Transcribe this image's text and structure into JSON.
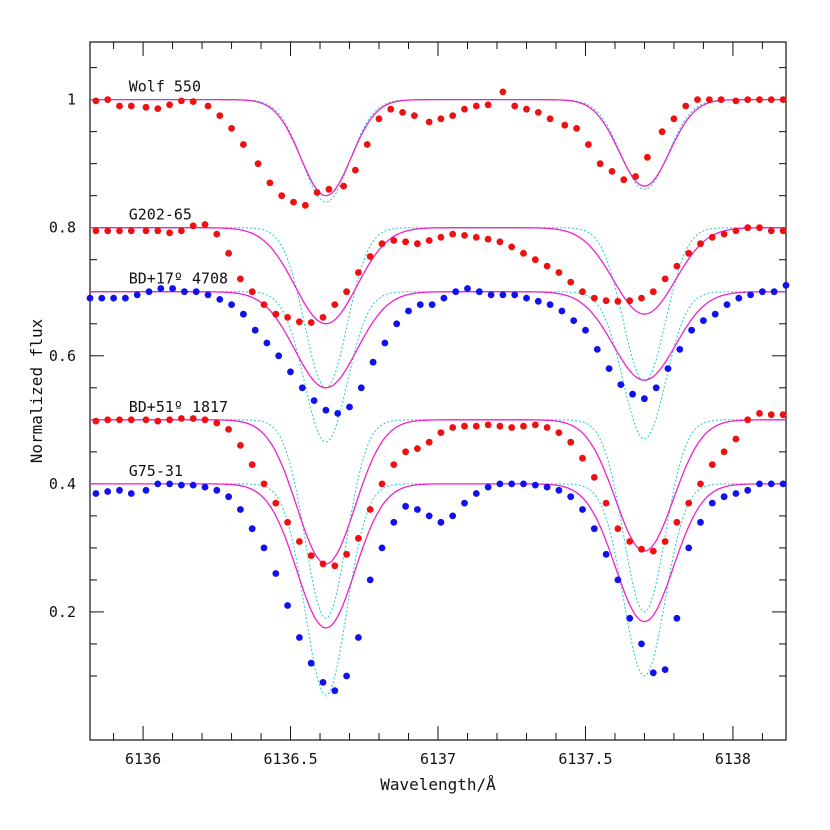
{
  "chart_data": {
    "type": "scatter",
    "title": "",
    "xlabel": "Wavelength/Å",
    "ylabel": "Normalized flux",
    "xlim": [
      6135.82,
      6138.18
    ],
    "ylim": [
      0.0,
      1.09
    ],
    "x_ticks": [
      6136,
      6136.5,
      6137,
      6137.5,
      6138
    ],
    "x_tick_labels": [
      "6136",
      "6136.5",
      "6137",
      "6137.5",
      "6138"
    ],
    "y_ticks": [
      0.2,
      0.4,
      0.6,
      0.8,
      1
    ],
    "y_tick_labels": [
      "0.2",
      "0.4",
      "0.6",
      "0.8",
      "1"
    ],
    "grid": false,
    "legend": "none",
    "colors": {
      "red_points": "#ee1111",
      "blue_points": "#1111ee",
      "solid_model": "#ee22cc",
      "dotted_model": "#22cccc"
    },
    "line_centers": [
      6136.62,
      6137.7
    ],
    "series": [
      {
        "name": "Wolf 550",
        "label_x": 6135.87,
        "continuum": 1.0,
        "color": "#ee1111",
        "solid_depths": [
          0.15,
          0.135
        ],
        "solid_sigma": 0.085,
        "dotted_depths": [
          0.16,
          0.14
        ],
        "dotted_sigma": 0.08,
        "x": [
          6135.84,
          6135.88,
          6135.92,
          6135.96,
          6136.01,
          6136.05,
          6136.09,
          6136.13,
          6136.17,
          6136.22,
          6136.26,
          6136.3,
          6136.34,
          6136.39,
          6136.43,
          6136.47,
          6136.51,
          6136.55,
          6136.59,
          6136.63,
          6136.68,
          6136.72,
          6136.76,
          6136.8,
          6136.84,
          6136.88,
          6136.92,
          6136.97,
          6137.01,
          6137.05,
          6137.09,
          6137.13,
          6137.17,
          6137.22,
          6137.26,
          6137.3,
          6137.34,
          6137.38,
          6137.43,
          6137.47,
          6137.51,
          6137.55,
          6137.59,
          6137.63,
          6137.67,
          6137.71,
          6137.76,
          6137.8,
          6137.84,
          6137.88,
          6137.92,
          6137.96,
          6138.01,
          6138.05,
          6138.09,
          6138.13,
          6138.17
        ],
        "y": [
          0.998,
          1.0,
          0.99,
          0.99,
          0.988,
          0.986,
          0.992,
          0.998,
          0.997,
          0.99,
          0.975,
          0.955,
          0.93,
          0.9,
          0.87,
          0.85,
          0.84,
          0.835,
          0.855,
          0.86,
          0.865,
          0.89,
          0.93,
          0.97,
          0.985,
          0.98,
          0.975,
          0.965,
          0.97,
          0.975,
          0.985,
          0.99,
          0.992,
          1.012,
          0.99,
          0.985,
          0.98,
          0.97,
          0.96,
          0.955,
          0.93,
          0.9,
          0.888,
          0.875,
          0.88,
          0.91,
          0.95,
          0.97,
          0.99,
          1.0,
          1.0,
          1.0,
          0.998,
          1.0,
          1.0,
          1.0,
          1.0
        ]
      },
      {
        "name": "G202-65",
        "label_x": 6135.87,
        "continuum": 0.8,
        "color": "#ee1111",
        "solid_depths": [
          0.15,
          0.135
        ],
        "solid_sigma": 0.105,
        "dotted_depths": [
          0.25,
          0.24
        ],
        "dotted_sigma": 0.072,
        "x": [
          6135.84,
          6135.88,
          6135.92,
          6135.96,
          6136.01,
          6136.05,
          6136.09,
          6136.13,
          6136.17,
          6136.21,
          6136.25,
          6136.29,
          6136.33,
          6136.37,
          6136.41,
          6136.45,
          6136.49,
          6136.53,
          6136.57,
          6136.61,
          6136.65,
          6136.69,
          6136.73,
          6136.77,
          6136.81,
          6136.85,
          6136.89,
          6136.93,
          6136.97,
          6137.01,
          6137.05,
          6137.09,
          6137.13,
          6137.17,
          6137.21,
          6137.25,
          6137.29,
          6137.33,
          6137.37,
          6137.41,
          6137.45,
          6137.49,
          6137.53,
          6137.57,
          6137.61,
          6137.65,
          6137.69,
          6137.73,
          6137.77,
          6137.81,
          6137.85,
          6137.89,
          6137.93,
          6137.97,
          6138.01,
          6138.05,
          6138.09,
          6138.13,
          6138.17
        ],
        "y": [
          0.795,
          0.795,
          0.795,
          0.795,
          0.795,
          0.795,
          0.792,
          0.795,
          0.803,
          0.805,
          0.79,
          0.76,
          0.72,
          0.7,
          0.68,
          0.665,
          0.66,
          0.653,
          0.652,
          0.66,
          0.68,
          0.7,
          0.73,
          0.755,
          0.775,
          0.78,
          0.778,
          0.775,
          0.78,
          0.785,
          0.79,
          0.788,
          0.785,
          0.782,
          0.778,
          0.77,
          0.76,
          0.75,
          0.74,
          0.73,
          0.715,
          0.7,
          0.69,
          0.686,
          0.685,
          0.686,
          0.69,
          0.7,
          0.72,
          0.74,
          0.76,
          0.775,
          0.785,
          0.79,
          0.795,
          0.8,
          0.8,
          0.795,
          0.795
        ]
      },
      {
        "name": "BD+17º 4708",
        "label_x": 6135.87,
        "continuum": 0.7,
        "color": "#1111ee",
        "solid_depths": [
          0.15,
          0.138
        ],
        "solid_sigma": 0.105,
        "dotted_depths": [
          0.235,
          0.23
        ],
        "dotted_sigma": 0.072,
        "x": [
          6135.82,
          6135.86,
          6135.9,
          6135.94,
          6135.98,
          6136.02,
          6136.06,
          6136.1,
          6136.14,
          6136.18,
          6136.22,
          6136.26,
          6136.3,
          6136.34,
          6136.38,
          6136.42,
          6136.46,
          6136.5,
          6136.54,
          6136.58,
          6136.62,
          6136.66,
          6136.7,
          6136.74,
          6136.78,
          6136.82,
          6136.86,
          6136.9,
          6136.94,
          6136.98,
          6137.02,
          6137.06,
          6137.1,
          6137.14,
          6137.18,
          6137.22,
          6137.26,
          6137.3,
          6137.34,
          6137.38,
          6137.42,
          6137.46,
          6137.5,
          6137.54,
          6137.58,
          6137.62,
          6137.66,
          6137.7,
          6137.74,
          6137.78,
          6137.82,
          6137.86,
          6137.9,
          6137.94,
          6137.98,
          6138.02,
          6138.06,
          6138.1,
          6138.14,
          6138.18
        ],
        "y": [
          0.69,
          0.69,
          0.69,
          0.69,
          0.695,
          0.7,
          0.705,
          0.705,
          0.7,
          0.7,
          0.695,
          0.688,
          0.68,
          0.665,
          0.64,
          0.62,
          0.6,
          0.575,
          0.55,
          0.53,
          0.515,
          0.51,
          0.52,
          0.55,
          0.59,
          0.62,
          0.65,
          0.67,
          0.68,
          0.68,
          0.69,
          0.7,
          0.705,
          0.7,
          0.695,
          0.695,
          0.695,
          0.69,
          0.685,
          0.68,
          0.67,
          0.655,
          0.64,
          0.61,
          0.58,
          0.555,
          0.54,
          0.533,
          0.55,
          0.58,
          0.61,
          0.64,
          0.655,
          0.665,
          0.68,
          0.69,
          0.695,
          0.7,
          0.7,
          0.71
        ]
      },
      {
        "name": "BD+51º 1817",
        "label_x": 6135.87,
        "continuum": 0.5,
        "color": "#ee1111",
        "solid_depths": [
          0.225,
          0.205
        ],
        "solid_sigma": 0.098,
        "dotted_depths": [
          0.31,
          0.3
        ],
        "dotted_sigma": 0.07,
        "x": [
          6135.84,
          6135.88,
          6135.92,
          6135.96,
          6136.01,
          6136.05,
          6136.09,
          6136.13,
          6136.17,
          6136.21,
          6136.25,
          6136.29,
          6136.33,
          6136.37,
          6136.41,
          6136.45,
          6136.49,
          6136.53,
          6136.57,
          6136.61,
          6136.65,
          6136.69,
          6136.73,
          6136.77,
          6136.81,
          6136.85,
          6136.89,
          6136.93,
          6136.97,
          6137.01,
          6137.05,
          6137.09,
          6137.13,
          6137.17,
          6137.21,
          6137.25,
          6137.29,
          6137.33,
          6137.37,
          6137.41,
          6137.45,
          6137.49,
          6137.53,
          6137.57,
          6137.61,
          6137.65,
          6137.69,
          6137.73,
          6137.77,
          6137.81,
          6137.85,
          6137.89,
          6137.93,
          6137.97,
          6138.01,
          6138.05,
          6138.09,
          6138.13,
          6138.17
        ],
        "y": [
          0.498,
          0.5,
          0.5,
          0.5,
          0.5,
          0.498,
          0.5,
          0.502,
          0.502,
          0.5,
          0.495,
          0.485,
          0.46,
          0.43,
          0.4,
          0.37,
          0.34,
          0.31,
          0.288,
          0.275,
          0.272,
          0.29,
          0.315,
          0.36,
          0.4,
          0.43,
          0.45,
          0.455,
          0.465,
          0.48,
          0.488,
          0.49,
          0.49,
          0.492,
          0.49,
          0.488,
          0.49,
          0.492,
          0.488,
          0.48,
          0.465,
          0.44,
          0.41,
          0.37,
          0.33,
          0.31,
          0.298,
          0.295,
          0.31,
          0.34,
          0.37,
          0.4,
          0.43,
          0.45,
          0.47,
          0.5,
          0.51,
          0.508,
          0.508
        ]
      },
      {
        "name": "G75-31",
        "label_x": 6135.87,
        "continuum": 0.4,
        "color": "#1111ee",
        "solid_depths": [
          0.225,
          0.215
        ],
        "solid_sigma": 0.098,
        "dotted_depths": [
          0.33,
          0.3
        ],
        "dotted_sigma": 0.07,
        "x": [
          6135.84,
          6135.88,
          6135.92,
          6135.96,
          6136.01,
          6136.05,
          6136.09,
          6136.13,
          6136.17,
          6136.21,
          6136.25,
          6136.29,
          6136.33,
          6136.37,
          6136.41,
          6136.45,
          6136.49,
          6136.53,
          6136.57,
          6136.61,
          6136.65,
          6136.69,
          6136.73,
          6136.77,
          6136.81,
          6136.85,
          6136.89,
          6136.93,
          6136.97,
          6137.01,
          6137.05,
          6137.09,
          6137.13,
          6137.17,
          6137.21,
          6137.25,
          6137.29,
          6137.33,
          6137.37,
          6137.41,
          6137.45,
          6137.49,
          6137.53,
          6137.57,
          6137.61,
          6137.65,
          6137.69,
          6137.73,
          6137.77,
          6137.81,
          6137.85,
          6137.89,
          6137.93,
          6137.97,
          6138.01,
          6138.05,
          6138.09,
          6138.13,
          6138.17
        ],
        "y": [
          0.385,
          0.388,
          0.39,
          0.385,
          0.39,
          0.4,
          0.4,
          0.398,
          0.398,
          0.395,
          0.39,
          0.38,
          0.36,
          0.33,
          0.3,
          0.26,
          0.21,
          0.16,
          0.12,
          0.09,
          0.077,
          0.1,
          0.16,
          0.25,
          0.3,
          0.34,
          0.365,
          0.36,
          0.35,
          0.34,
          0.35,
          0.37,
          0.385,
          0.395,
          0.4,
          0.4,
          0.4,
          0.398,
          0.395,
          0.39,
          0.38,
          0.36,
          0.33,
          0.29,
          0.25,
          0.19,
          0.15,
          0.105,
          0.11,
          0.19,
          0.3,
          0.34,
          0.37,
          0.38,
          0.385,
          0.39,
          0.4,
          0.4,
          0.4
        ]
      }
    ]
  }
}
